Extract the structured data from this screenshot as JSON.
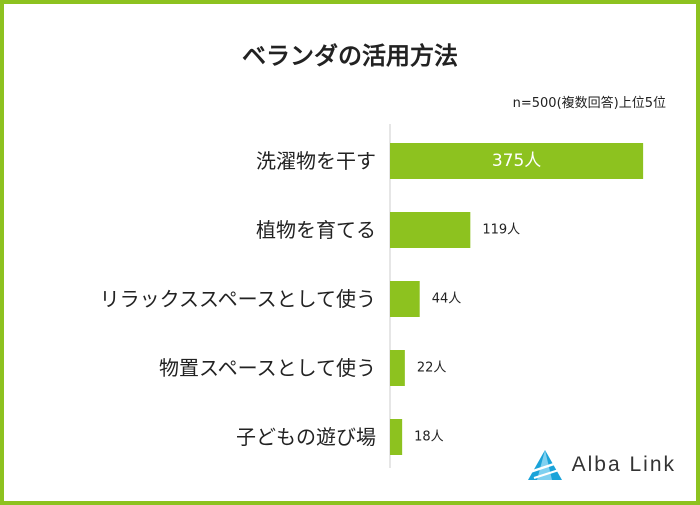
{
  "title": "ベランダの活用方法",
  "subtitle": "n=500(複数回答)上位5位",
  "brand": {
    "name": "Alba Link",
    "icon": "alba-link-logo-icon",
    "color": "#1aa3d9"
  },
  "colors": {
    "bar": "#8dc21f",
    "border": "#8dc21f",
    "axis": "#cccccc"
  },
  "chart_data": {
    "type": "bar",
    "orientation": "horizontal",
    "title": "ベランダの活用方法",
    "subtitle": "n=500(複数回答)上位5位",
    "categories": [
      "洗濯物を干す",
      "植物を育てる",
      "リラックススペースとして使う",
      "物置スペースとして使う",
      "子どもの遊び場"
    ],
    "values": [
      375,
      119,
      44,
      22,
      18
    ],
    "value_labels": [
      "375人",
      "119人",
      "44人",
      "22人",
      "18人"
    ],
    "unit": "人",
    "xlim": [
      0,
      400
    ],
    "grid": false,
    "legend": "none"
  }
}
